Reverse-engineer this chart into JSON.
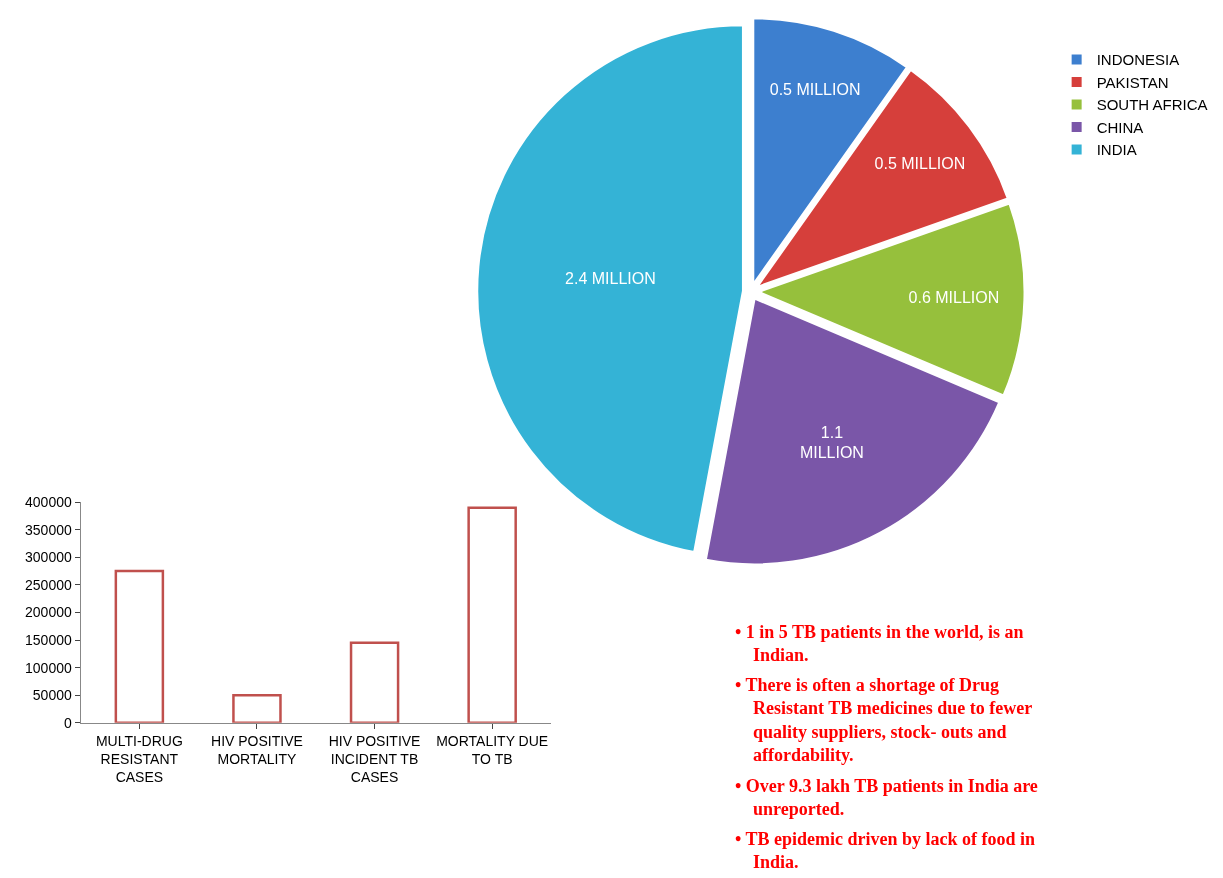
{
  "chart_data": [
    {
      "type": "pie",
      "categories": [
        "INDONESIA",
        "PAKISTAN",
        "SOUTH AFRICA",
        "CHINA",
        "INDIA"
      ],
      "values": [
        0.5,
        0.5,
        0.6,
        1.1,
        2.4
      ],
      "colors": [
        "#3d7fcf",
        "#d63f3b",
        "#96c03c",
        "#7a56a8",
        "#34b3d6"
      ],
      "value_labels": [
        "0.5 MILLION",
        "0.5 MILLION",
        "0.6 MILLION",
        "1.1 MILLION",
        "2.4 MILLION"
      ],
      "legend": "top right"
    },
    {
      "type": "bar",
      "categories": [
        "MULTI-DRUG RESISTANT CASES",
        "HIV POSITIVE MORTALITY",
        "HIV POSITIVE INCIDENT TB CASES",
        "MORTALITY DUE TO TB"
      ],
      "values": [
        275000,
        50000,
        145000,
        390000
      ],
      "color": "#ffffff",
      "ylim": [
        0,
        400000
      ],
      "yticks": [
        0,
        50000,
        100000,
        150000,
        200000,
        250000,
        300000,
        350000,
        400000
      ],
      "grid": false,
      "legend": false,
      "annotations": [
        "• 1 in 5 TB patients in the world, is an Indian.",
        "• There is often a shortage of Drug Resistant TB medicines due to fewer quality suppliers, stock- outs and affordability.",
        "• Over 9.3 lakh TB patients in India are unreported.",
        "• TB epidemic driven by lack of food in India."
      ]
    }
  ]
}
